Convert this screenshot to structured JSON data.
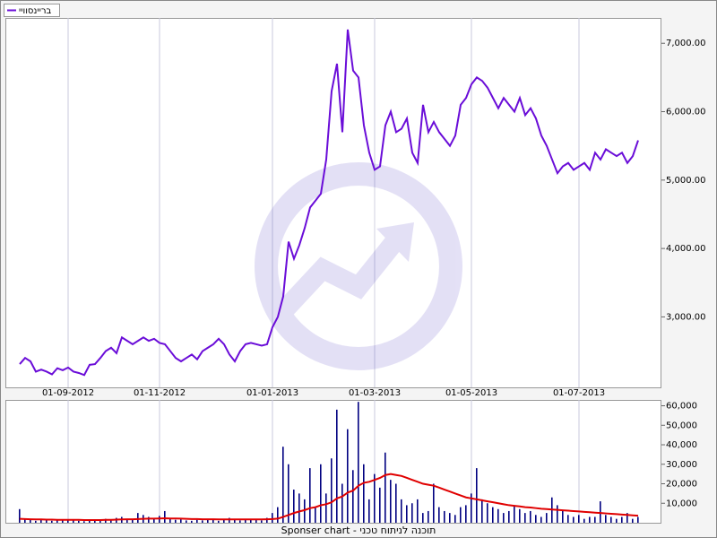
{
  "chart_data": [
    {
      "type": "line",
      "legend": "bottom-left",
      "categories": [
        null,
        null,
        null,
        null,
        null,
        null,
        null,
        null,
        null,
        "01-09-2012",
        null,
        null,
        null,
        null,
        null,
        null,
        null,
        null,
        null,
        null,
        null,
        null,
        null,
        null,
        null,
        null,
        "01-11-2012",
        null,
        null,
        null,
        null,
        null,
        null,
        null,
        null,
        null,
        null,
        null,
        null,
        null,
        null,
        null,
        null,
        null,
        null,
        null,
        null,
        "01-01-2013",
        null,
        null,
        null,
        null,
        null,
        null,
        null,
        null,
        null,
        null,
        null,
        null,
        null,
        null,
        null,
        null,
        null,
        null,
        "01-03-2013",
        null,
        null,
        null,
        null,
        null,
        null,
        null,
        null,
        null,
        null,
        null,
        null,
        null,
        null,
        null,
        null,
        null,
        "01-05-2013",
        null,
        null,
        null,
        null,
        null,
        null,
        null,
        null,
        null,
        null,
        null,
        null,
        null,
        null,
        null,
        null,
        null,
        null,
        null,
        "01-07-2013",
        null,
        null,
        null,
        null,
        null,
        null,
        null,
        null,
        null,
        null,
        null
      ],
      "series": [
        {
          "name": "בריינסוויי",
          "color": "#6a0dd8",
          "values": [
            2310,
            2400,
            2350,
            2200,
            2230,
            2200,
            2160,
            2250,
            2220,
            2260,
            2200,
            2180,
            2150,
            2300,
            2310,
            2400,
            2500,
            2550,
            2470,
            2700,
            2650,
            2600,
            2650,
            2700,
            2650,
            2680,
            2620,
            2600,
            2500,
            2400,
            2350,
            2400,
            2450,
            2380,
            2500,
            2550,
            2600,
            2680,
            2600,
            2450,
            2350,
            2500,
            2600,
            2620,
            2600,
            2580,
            2600,
            2850,
            3000,
            3300,
            4100,
            3850,
            4050,
            4300,
            4600,
            4700,
            4800,
            5300,
            6300,
            6700,
            5700,
            7200,
            6600,
            6500,
            5800,
            5400,
            5150,
            5200,
            5800,
            6000,
            5700,
            5750,
            5900,
            5400,
            5250,
            6100,
            5700,
            5850,
            5700,
            5600,
            5500,
            5650,
            6100,
            6200,
            6400,
            6500,
            6450,
            6350,
            6200,
            6050,
            6200,
            6100,
            6000,
            6200,
            5950,
            6050,
            5900,
            5650,
            5500,
            5300,
            5100,
            5200,
            5250,
            5150,
            5200,
            5250,
            5150,
            5400,
            5300,
            5450,
            5400,
            5350,
            5400,
            5250,
            5350,
            5580
          ]
        }
      ],
      "ylim": [
        1970,
        7370
      ],
      "yticks": [
        {
          "value": 3000,
          "label": "3,000.00"
        },
        {
          "value": 4000,
          "label": "4,000.00"
        },
        {
          "value": 5000,
          "label": "5,000.00"
        },
        {
          "value": 6000,
          "label": "6,000.00"
        },
        {
          "value": 7000,
          "label": "7,000.00"
        }
      ],
      "grid": true
    },
    {
      "type": "bar",
      "series": [
        {
          "color": "#000080",
          "values": [
            7000,
            2000,
            1500,
            1000,
            1500,
            1200,
            1000,
            1800,
            1500,
            1200,
            1500,
            1000,
            800,
            1200,
            1000,
            1500,
            2000,
            1800,
            2500,
            3000,
            2000,
            1500,
            5000,
            4000,
            3000,
            2500,
            3500,
            6000,
            2000,
            1500,
            1800,
            1200,
            1000,
            1500,
            1200,
            2000,
            1500,
            1000,
            1800,
            2500,
            1500,
            1200,
            1800,
            2000,
            1500,
            1200,
            2500,
            5000,
            8000,
            39000,
            30000,
            17000,
            15000,
            12000,
            28000,
            8000,
            30000,
            15000,
            33000,
            58000,
            20000,
            48000,
            27000,
            62000,
            30000,
            12000,
            25000,
            18000,
            36000,
            22000,
            20000,
            12000,
            9000,
            10000,
            12000,
            5000,
            6000,
            20000,
            8000,
            6000,
            5000,
            4000,
            8000,
            9000,
            15000,
            28000,
            12000,
            10000,
            8000,
            7000,
            5000,
            6000,
            9000,
            7000,
            5000,
            6000,
            4000,
            3000,
            5000,
            13000,
            9000,
            6000,
            4000,
            3000,
            4000,
            2000,
            3000,
            3000,
            11000,
            4000,
            3000,
            2000,
            3000,
            5000,
            2000,
            3000
          ]
        },
        {
          "type": "line",
          "color": "#e00000",
          "values": [
            2000,
            1900,
            1800,
            1700,
            1700,
            1600,
            1600,
            1500,
            1500,
            1500,
            1500,
            1500,
            1400,
            1400,
            1400,
            1400,
            1500,
            1500,
            1600,
            1700,
            1800,
            1800,
            1900,
            2000,
            2100,
            2100,
            2200,
            2300,
            2200,
            2200,
            2100,
            2000,
            1900,
            1900,
            1800,
            1800,
            1800,
            1700,
            1700,
            1700,
            1700,
            1700,
            1700,
            1700,
            1700,
            1700,
            1800,
            1900,
            2100,
            3000,
            4000,
            5000,
            5800,
            6500,
            7500,
            8000,
            9000,
            9500,
            10500,
            12500,
            13500,
            15500,
            16500,
            19000,
            20500,
            21000,
            22000,
            23000,
            24500,
            25000,
            24500,
            24000,
            23000,
            22000,
            21000,
            20000,
            19500,
            19000,
            18000,
            17000,
            16000,
            15000,
            14000,
            13000,
            12500,
            12000,
            11500,
            11000,
            10500,
            10000,
            9500,
            9000,
            8700,
            8400,
            8000,
            7800,
            7500,
            7200,
            7000,
            6800,
            6600,
            6400,
            6200,
            6000,
            5800,
            5600,
            5400,
            5200,
            5000,
            4800,
            4600,
            4400,
            4200,
            4000,
            3800,
            3600
          ]
        }
      ],
      "ylim": [
        0,
        63000
      ],
      "yticks": [
        {
          "value": 10000,
          "label": "10,000"
        },
        {
          "value": 20000,
          "label": "20,000"
        },
        {
          "value": 30000,
          "label": "30,000"
        },
        {
          "value": 40000,
          "label": "40,000"
        },
        {
          "value": 50000,
          "label": "50,000"
        },
        {
          "value": 60000,
          "label": "60,000"
        }
      ]
    }
  ],
  "footer": "Sponser chart - תוכנה לניתוח טכני"
}
